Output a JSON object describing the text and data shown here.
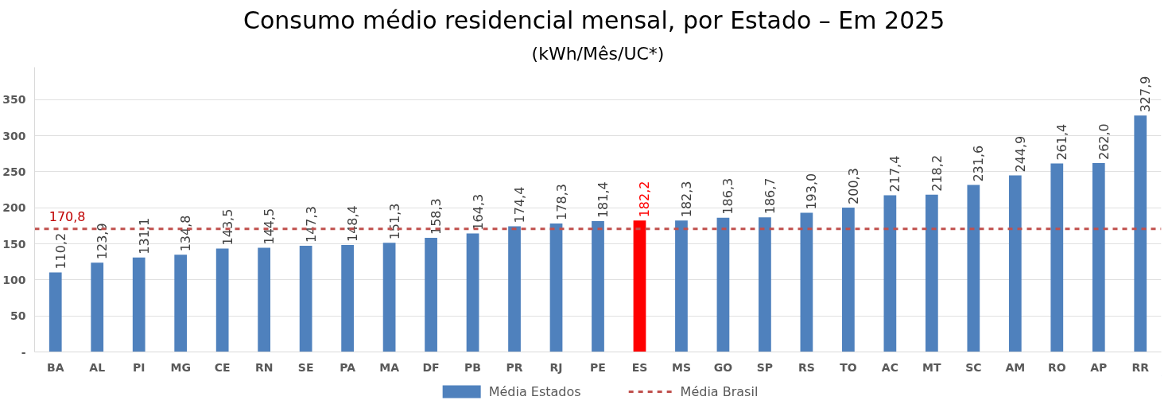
{
  "chart_data": {
    "type": "bar",
    "title": "Consumo médio residencial mensal, por Estado –  Em 2025",
    "subtitle": "(kWh/Mês/UC*)",
    "categories": [
      "BA",
      "AL",
      "PI",
      "MG",
      "CE",
      "RN",
      "SE",
      "PA",
      "MA",
      "DF",
      "PB",
      "PR",
      "RJ",
      "PE",
      "ES",
      "MS",
      "GO",
      "SP",
      "RS",
      "TO",
      "AC",
      "MT",
      "SC",
      "AM",
      "RO",
      "AP",
      "RR"
    ],
    "series": [
      {
        "name": "Média Estados",
        "color": "#4f81bd",
        "values": [
          110.2,
          123.9,
          131.1,
          134.8,
          143.5,
          144.5,
          147.3,
          148.4,
          151.3,
          158.3,
          164.3,
          174.4,
          178.3,
          181.4,
          182.2,
          182.3,
          186.3,
          186.7,
          193.0,
          200.3,
          217.4,
          218.2,
          231.6,
          244.9,
          261.4,
          262.0,
          327.9
        ],
        "value_labels": [
          "110,2",
          "123,9",
          "131,1",
          "134,8",
          "143,5",
          "144,5",
          "147,3",
          "148,4",
          "151,3",
          "158,3",
          "164,3",
          "174,4",
          "178,3",
          "181,4",
          "182,2",
          "182,3",
          "186,3",
          "186,7",
          "193,0",
          "200,3",
          "217,4",
          "218,2",
          "231,6",
          "244,9",
          "261,4",
          "262,0",
          "327,9"
        ],
        "colors": [
          "#4f81bd",
          "#4f81bd",
          "#4f81bd",
          "#4f81bd",
          "#4f81bd",
          "#4f81bd",
          "#4f81bd",
          "#4f81bd",
          "#4f81bd",
          "#4f81bd",
          "#4f81bd",
          "#4f81bd",
          "#4f81bd",
          "#4f81bd",
          "#ff0000",
          "#4f81bd",
          "#4f81bd",
          "#4f81bd",
          "#4f81bd",
          "#4f81bd",
          "#4f81bd",
          "#4f81bd",
          "#4f81bd",
          "#4f81bd",
          "#4f81bd",
          "#4f81bd",
          "#4f81bd"
        ]
      }
    ],
    "ylim": [
      0,
      395
    ],
    "yticks": [
      {
        "value": 0,
        "label": "-"
      },
      50,
      100,
      150,
      200,
      250,
      300,
      350
    ],
    "grid": "y",
    "legend": "bottom",
    "ref_lines": [
      {
        "axis": "y",
        "value": 170.8,
        "label": "Média Brasil",
        "color": "#c0504d",
        "line_style": "dashed"
      }
    ],
    "annotations": [
      {
        "text": "170,8",
        "x": "BA",
        "y": 170.8
      }
    ]
  }
}
